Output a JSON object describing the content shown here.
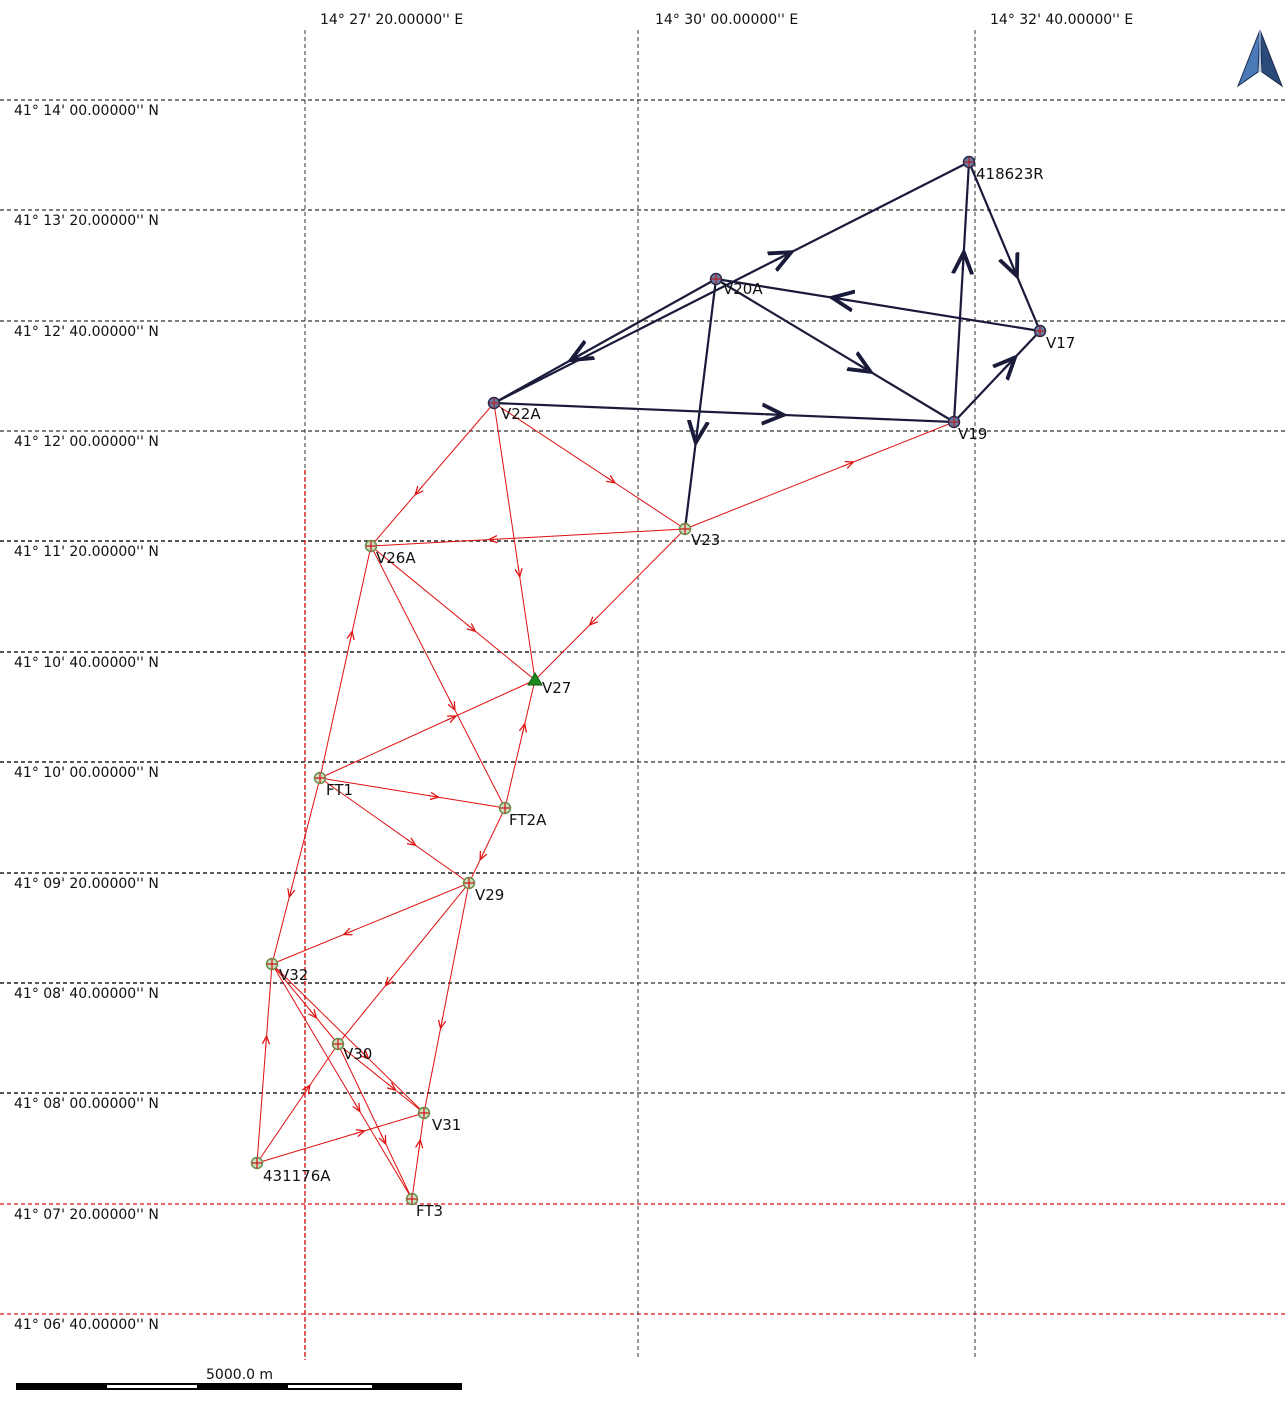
{
  "graticule": {
    "longitudes": [
      "14° 27' 20.00000'' E",
      "14° 30' 00.00000'' E",
      "14° 32' 40.00000'' E"
    ],
    "latitudes": [
      "41° 14' 00.00000'' N",
      "41° 13' 20.00000'' N",
      "41° 12' 40.00000'' N",
      "41° 12' 00.00000'' N",
      "41° 11' 20.00000'' N",
      "41° 10' 40.00000'' N",
      "41° 10' 00.00000'' N",
      "41° 09' 20.00000'' N",
      "41° 08' 40.00000'' N",
      "41° 08' 00.00000'' N",
      "41° 07' 20.00000'' N",
      "41° 06' 40.00000'' N"
    ]
  },
  "colors": {
    "primary_network": "#1a1a3a",
    "secondary_network": "#e01010",
    "grid_black": "#333333",
    "grid_red": "#e01010",
    "station_fill": "#c8e0c0",
    "fixed_station": "#1d8a1d"
  },
  "stations": [
    {
      "id": "418623R",
      "label": "418623R",
      "network": "primary"
    },
    {
      "id": "V20A",
      "label": "V20A",
      "network": "primary"
    },
    {
      "id": "V17",
      "label": "V17",
      "network": "primary"
    },
    {
      "id": "V22A",
      "label": "V22A",
      "network": "primary"
    },
    {
      "id": "V19",
      "label": "V19",
      "network": "primary"
    },
    {
      "id": "V23",
      "label": "V23",
      "network": "secondary"
    },
    {
      "id": "V26A",
      "label": "V26A",
      "network": "secondary"
    },
    {
      "id": "V27",
      "label": "V27",
      "network": "secondary"
    },
    {
      "id": "FT1",
      "label": "FT1",
      "network": "secondary"
    },
    {
      "id": "FT2A",
      "label": "FT2A",
      "network": "secondary"
    },
    {
      "id": "V29",
      "label": "V29",
      "network": "secondary"
    },
    {
      "id": "V32",
      "label": "V32",
      "network": "secondary"
    },
    {
      "id": "V30",
      "label": "V30",
      "network": "secondary"
    },
    {
      "id": "V31",
      "label": "V31",
      "network": "secondary"
    },
    {
      "id": "431176A",
      "label": "431176A",
      "network": "secondary"
    },
    {
      "id": "FT3",
      "label": "FT3",
      "network": "secondary"
    }
  ],
  "observations": {
    "primary": [
      [
        "V22A",
        "418623R"
      ],
      [
        "418623R",
        "V17"
      ],
      [
        "V19",
        "418623R"
      ],
      [
        "V17",
        "V20A"
      ],
      [
        "V20A",
        "V22A"
      ],
      [
        "V20A",
        "V19"
      ],
      [
        "V22A",
        "V19"
      ],
      [
        "V20A",
        "V23"
      ],
      [
        "V19",
        "V17"
      ]
    ],
    "secondary": [
      [
        "V22A",
        "V26A"
      ],
      [
        "V22A",
        "V27"
      ],
      [
        "V22A",
        "V23"
      ],
      [
        "V23",
        "V19"
      ],
      [
        "V23",
        "V26A"
      ],
      [
        "V23",
        "V27"
      ],
      [
        "V26A",
        "V27"
      ],
      [
        "V26A",
        "FT2A"
      ],
      [
        "FT1",
        "V26A"
      ],
      [
        "FT1",
        "V27"
      ],
      [
        "FT2A",
        "V27"
      ],
      [
        "FT1",
        "FT2A"
      ],
      [
        "FT1",
        "V29"
      ],
      [
        "FT2A",
        "V29"
      ],
      [
        "V29",
        "V32"
      ],
      [
        "V29",
        "V30"
      ],
      [
        "V29",
        "V31"
      ],
      [
        "FT1",
        "V32"
      ],
      [
        "V32",
        "V30"
      ],
      [
        "V32",
        "V31"
      ],
      [
        "V32",
        "FT3"
      ],
      [
        "431176A",
        "V32"
      ],
      [
        "431176A",
        "V30"
      ],
      [
        "431176A",
        "V31"
      ],
      [
        "V30",
        "V31"
      ],
      [
        "V30",
        "FT3"
      ],
      [
        "FT3",
        "V31"
      ]
    ]
  },
  "scale_bar": {
    "label": "5000.0 m"
  },
  "north_arrow": {
    "icon": "north-arrow-icon"
  }
}
